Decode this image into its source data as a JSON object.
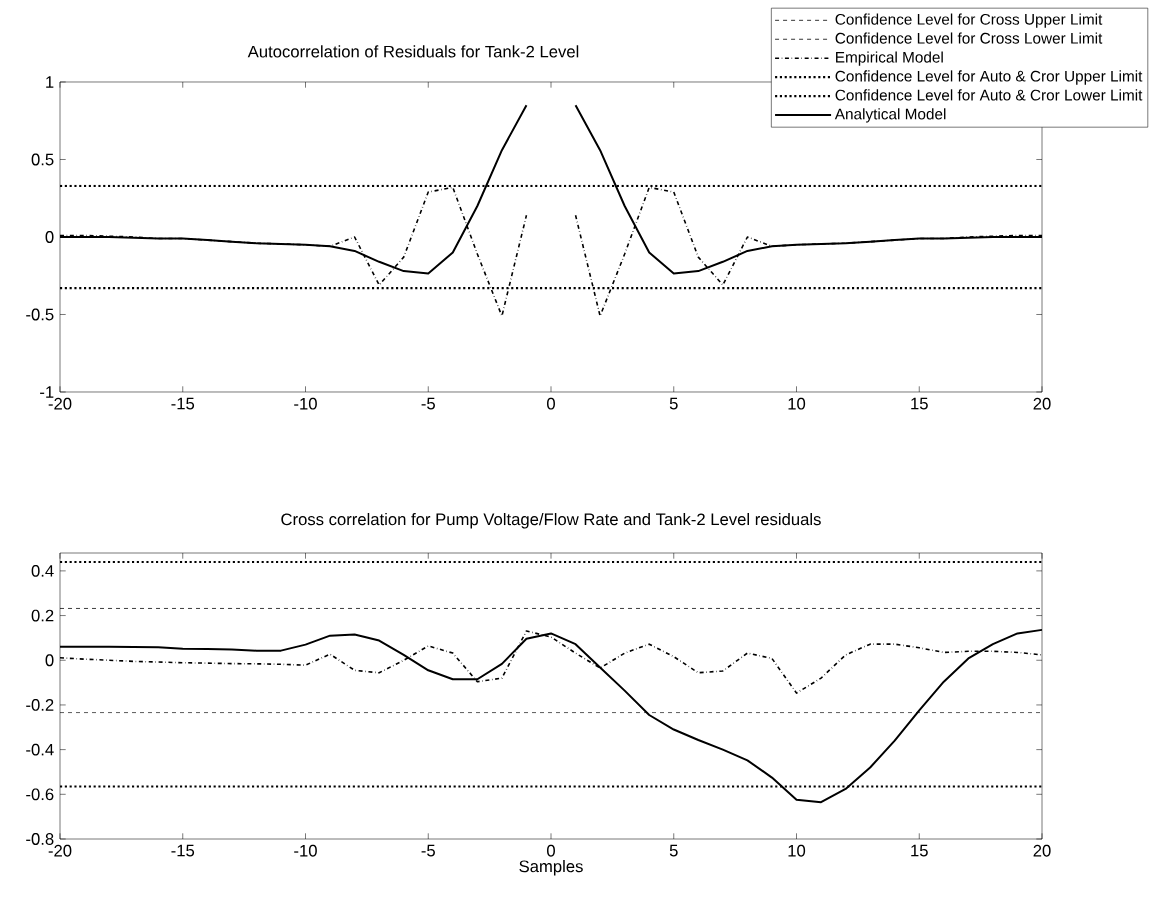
{
  "chart_data": [
    {
      "type": "line",
      "title": "Autocorrelation of Residuals for Tank-2 Level",
      "marker": "none",
      "x": [
        -20,
        -19,
        -18,
        -17,
        -16,
        -15,
        -14,
        -13,
        -12,
        -11,
        -10,
        -9,
        -8,
        -7,
        -6,
        -5,
        -4,
        -3,
        -2,
        -1,
        0,
        1,
        2,
        3,
        4,
        5,
        6,
        7,
        8,
        9,
        10,
        11,
        12,
        13,
        14,
        15,
        16,
        17,
        18,
        19,
        20
      ],
      "xlim": [
        -20,
        20
      ],
      "xticks": [
        -20,
        -15,
        -10,
        -5,
        0,
        5,
        10,
        15,
        20
      ],
      "ylim": [
        -1,
        1
      ],
      "yticks": [
        -1,
        -0.5,
        0,
        0.5,
        1
      ],
      "series": [
        {
          "color": "#000000",
          "line_style": "dotted",
          "values": [
            0.33,
            0.33,
            0.33,
            0.33,
            0.33,
            0.33,
            0.33,
            0.33,
            0.33,
            0.33,
            0.33,
            0.33,
            0.33,
            0.33,
            0.33,
            0.33,
            0.33,
            0.33,
            0.33,
            0.33,
            0.33,
            0.33,
            0.33,
            0.33,
            0.33,
            0.33,
            0.33,
            0.33,
            0.33,
            0.33,
            0.33,
            0.33,
            0.33,
            0.33,
            0.33,
            0.33,
            0.33,
            0.33,
            0.33,
            0.33,
            0.33
          ]
        },
        {
          "color": "#000000",
          "line_style": "dotted",
          "values": [
            -0.33,
            -0.33,
            -0.33,
            -0.33,
            -0.33,
            -0.33,
            -0.33,
            -0.33,
            -0.33,
            -0.33,
            -0.33,
            -0.33,
            -0.33,
            -0.33,
            -0.33,
            -0.33,
            -0.33,
            -0.33,
            -0.33,
            -0.33,
            -0.33,
            -0.33,
            -0.33,
            -0.33,
            -0.33,
            -0.33,
            -0.33,
            -0.33,
            -0.33,
            -0.33,
            -0.33,
            -0.33,
            -0.33,
            -0.33,
            -0.33,
            -0.33,
            -0.33,
            -0.33,
            -0.33,
            -0.33,
            -0.33
          ]
        },
        {
          "color": "#000000",
          "line_style": "dashdot",
          "values": [
            0.01,
            0.01,
            0.005,
            0.0,
            -0.01,
            -0.01,
            -0.02,
            -0.03,
            -0.04,
            -0.045,
            -0.05,
            -0.06,
            0.0,
            -0.31,
            -0.13,
            0.29,
            0.32,
            -0.11,
            -0.51,
            0.14,
            null,
            0.14,
            -0.51,
            -0.11,
            0.32,
            0.29,
            -0.13,
            -0.31,
            0.0,
            -0.06,
            -0.05,
            -0.045,
            -0.04,
            -0.03,
            -0.02,
            -0.01,
            -0.01,
            0.0,
            0.005,
            0.01,
            0.01
          ]
        },
        {
          "color": "#000000",
          "line_style": "solid",
          "values": [
            0.0,
            0.0,
            0.0,
            -0.005,
            -0.01,
            -0.01,
            -0.02,
            -0.03,
            -0.04,
            -0.045,
            -0.05,
            -0.06,
            -0.09,
            -0.16,
            -0.22,
            -0.235,
            -0.1,
            0.2,
            0.56,
            0.85,
            null,
            0.85,
            0.56,
            0.2,
            -0.1,
            -0.235,
            -0.22,
            -0.16,
            -0.09,
            -0.06,
            -0.05,
            -0.045,
            -0.04,
            -0.03,
            -0.02,
            -0.01,
            -0.01,
            -0.005,
            0.0,
            0.0,
            0.0
          ]
        }
      ]
    },
    {
      "type": "line",
      "title": "Cross correlation for Pump Voltage/Flow Rate and Tank-2 Level residuals",
      "xlabel": "Samples",
      "marker": "none",
      "legend": "top right",
      "x": [
        -20,
        -19,
        -18,
        -17,
        -16,
        -15,
        -14,
        -13,
        -12,
        -11,
        -10,
        -9,
        -8,
        -7,
        -6,
        -5,
        -4,
        -3,
        -2,
        -1,
        0,
        1,
        2,
        3,
        4,
        5,
        6,
        7,
        8,
        9,
        10,
        11,
        12,
        13,
        14,
        15,
        16,
        17,
        18,
        19,
        20
      ],
      "xlim": [
        -20,
        20
      ],
      "xticks": [
        -20,
        -15,
        -10,
        -5,
        0,
        5,
        10,
        15,
        20
      ],
      "ylim": [
        -0.8,
        0.48
      ],
      "yticks": [
        -0.8,
        -0.6,
        -0.4,
        -0.2,
        0,
        0.2,
        0.4
      ],
      "series": [
        {
          "name": "Confidence Level for Cross Upper Limit",
          "color": "#000000",
          "line_style": "dashed",
          "values": [
            0.232,
            0.232,
            0.232,
            0.232,
            0.232,
            0.232,
            0.232,
            0.232,
            0.232,
            0.232,
            0.232,
            0.232,
            0.232,
            0.232,
            0.232,
            0.232,
            0.232,
            0.232,
            0.232,
            0.232,
            0.232,
            0.232,
            0.232,
            0.232,
            0.232,
            0.232,
            0.232,
            0.232,
            0.232,
            0.232,
            0.232,
            0.232,
            0.232,
            0.232,
            0.232,
            0.232,
            0.232,
            0.232,
            0.232,
            0.232,
            0.232
          ]
        },
        {
          "name": "Confidence Level for Cross Lower Limit",
          "color": "#000000",
          "line_style": "dashed",
          "values": [
            -0.235,
            -0.235,
            -0.235,
            -0.235,
            -0.235,
            -0.235,
            -0.235,
            -0.235,
            -0.235,
            -0.235,
            -0.235,
            -0.235,
            -0.235,
            -0.235,
            -0.235,
            -0.235,
            -0.235,
            -0.235,
            -0.235,
            -0.235,
            -0.235,
            -0.235,
            -0.235,
            -0.235,
            -0.235,
            -0.235,
            -0.235,
            -0.235,
            -0.235,
            -0.235,
            -0.235,
            -0.235,
            -0.235,
            -0.235,
            -0.235,
            -0.235,
            -0.235,
            -0.235,
            -0.235,
            -0.235,
            -0.235
          ]
        },
        {
          "name": "Empirical Model",
          "color": "#000000",
          "line_style": "dashdot",
          "values": [
            0.011,
            0.005,
            0.0,
            -0.005,
            -0.008,
            -0.011,
            -0.013,
            -0.015,
            -0.016,
            -0.018,
            -0.022,
            0.027,
            -0.045,
            -0.056,
            0.0,
            0.064,
            0.032,
            -0.096,
            -0.08,
            0.131,
            0.104,
            0.032,
            -0.035,
            0.032,
            0.072,
            0.016,
            -0.056,
            -0.048,
            0.032,
            0.008,
            -0.147,
            -0.08,
            0.024,
            0.072,
            0.072,
            0.056,
            0.035,
            0.04,
            0.04,
            0.035,
            0.024
          ]
        },
        {
          "name": "Confidence Level for Auto & Cror Upper Limit",
          "color": "#000000",
          "line_style": "dotted",
          "values": [
            0.44,
            0.44,
            0.44,
            0.44,
            0.44,
            0.44,
            0.44,
            0.44,
            0.44,
            0.44,
            0.44,
            0.44,
            0.44,
            0.44,
            0.44,
            0.44,
            0.44,
            0.44,
            0.44,
            0.44,
            0.44,
            0.44,
            0.44,
            0.44,
            0.44,
            0.44,
            0.44,
            0.44,
            0.44,
            0.44,
            0.44,
            0.44,
            0.44,
            0.44,
            0.44,
            0.44,
            0.44,
            0.44,
            0.44,
            0.44,
            0.44
          ]
        },
        {
          "name": "Confidence Level for Auto & Cror Lower Limit",
          "color": "#000000",
          "line_style": "dotted",
          "values": [
            -0.565,
            -0.565,
            -0.565,
            -0.565,
            -0.565,
            -0.565,
            -0.565,
            -0.565,
            -0.565,
            -0.565,
            -0.565,
            -0.565,
            -0.565,
            -0.565,
            -0.565,
            -0.565,
            -0.565,
            -0.565,
            -0.565,
            -0.565,
            -0.565,
            -0.565,
            -0.565,
            -0.565,
            -0.565,
            -0.565,
            -0.565,
            -0.565,
            -0.565,
            -0.565,
            -0.565,
            -0.565,
            -0.565,
            -0.565,
            -0.565,
            -0.565,
            -0.565,
            -0.565,
            -0.565,
            -0.565,
            -0.565
          ]
        },
        {
          "name": "Analytical Model",
          "color": "#000000",
          "line_style": "solid",
          "values": [
            0.061,
            0.06,
            0.06,
            0.059,
            0.058,
            0.051,
            0.05,
            0.048,
            0.043,
            0.043,
            0.07,
            0.11,
            0.115,
            0.088,
            0.024,
            -0.045,
            -0.085,
            -0.085,
            -0.016,
            0.096,
            0.12,
            0.072,
            -0.032,
            -0.136,
            -0.245,
            -0.31,
            -0.357,
            -0.4,
            -0.448,
            -0.525,
            -0.624,
            -0.635,
            -0.576,
            -0.48,
            -0.36,
            -0.224,
            -0.096,
            0.008,
            0.072,
            0.12,
            0.136
          ]
        }
      ]
    }
  ]
}
